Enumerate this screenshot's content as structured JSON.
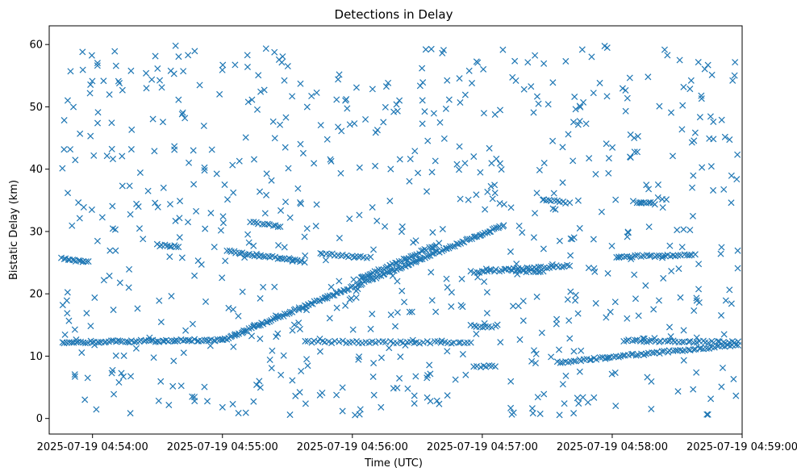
{
  "chart_data": {
    "type": "scatter",
    "title": "Detections in Delay",
    "xlabel": "Time (UTC)",
    "ylabel": "Bistatic Delay (km)",
    "marker": "x",
    "color": "#1f77b4",
    "grid": false,
    "x_unit": "seconds since 2025-07-19 04:53:40",
    "xlim": [
      0,
      320
    ],
    "ylim": [
      -2.5,
      63
    ],
    "x_ticks": [
      {
        "value": 20,
        "label": "2025-07-19 04:54:00"
      },
      {
        "value": 80,
        "label": "2025-07-19 04:55:00"
      },
      {
        "value": 140,
        "label": "2025-07-19 04:56:00"
      },
      {
        "value": 200,
        "label": "2025-07-19 04:57:00"
      },
      {
        "value": 260,
        "label": "2025-07-19 04:58:00"
      },
      {
        "value": 320,
        "label": "2025-07-19 04:59:00"
      }
    ],
    "y_ticks": [
      {
        "value": 0,
        "label": "0"
      },
      {
        "value": 10,
        "label": "10"
      },
      {
        "value": 20,
        "label": "20"
      },
      {
        "value": 30,
        "label": "30"
      },
      {
        "value": 40,
        "label": "40"
      },
      {
        "value": 50,
        "label": "50"
      },
      {
        "value": 60,
        "label": "60"
      }
    ],
    "tracks": [
      {
        "name": "track-12km-early",
        "x_start": 6,
        "x_end": 80,
        "y_start": 12.2,
        "y_end": 12.6,
        "count": 70
      },
      {
        "name": "track-rising-12-to-31",
        "x_start": 80,
        "x_end": 210,
        "y_start": 12.6,
        "y_end": 31.0,
        "count": 150
      },
      {
        "name": "track-25-early",
        "x_start": 6,
        "x_end": 18,
        "y_start": 25.6,
        "y_end": 25.2,
        "count": 14
      },
      {
        "name": "track-27-to-25",
        "x_start": 82,
        "x_end": 118,
        "y_start": 26.8,
        "y_end": 25.2,
        "count": 35
      },
      {
        "name": "track-31-short",
        "x_start": 93,
        "x_end": 107,
        "y_start": 31.4,
        "y_end": 30.8,
        "count": 12
      },
      {
        "name": "track-28-short",
        "x_start": 50,
        "x_end": 60,
        "y_start": 27.8,
        "y_end": 27.6,
        "count": 10
      },
      {
        "name": "track-rising-22-to-28",
        "x_start": 144,
        "x_end": 180,
        "y_start": 22.5,
        "y_end": 28.0,
        "count": 40
      },
      {
        "name": "track-26-mid",
        "x_start": 125,
        "x_end": 148,
        "y_start": 26.5,
        "y_end": 25.8,
        "count": 18
      },
      {
        "name": "track-12km-mid",
        "x_start": 118,
        "x_end": 195,
        "y_start": 12.3,
        "y_end": 12.2,
        "count": 50
      },
      {
        "name": "track-24-late",
        "x_start": 195,
        "x_end": 240,
        "y_start": 23.5,
        "y_end": 24.5,
        "count": 40
      },
      {
        "name": "track-rising-9-to-12",
        "x_start": 235,
        "x_end": 318,
        "y_start": 9.0,
        "y_end": 11.8,
        "count": 70
      },
      {
        "name": "track-12km-late",
        "x_start": 265,
        "x_end": 318,
        "y_start": 12.5,
        "y_end": 12.2,
        "count": 40
      },
      {
        "name": "track-26-late",
        "x_start": 262,
        "x_end": 298,
        "y_start": 26.0,
        "y_end": 26.2,
        "count": 30
      },
      {
        "name": "track-35-short",
        "x_start": 228,
        "x_end": 240,
        "y_start": 35.0,
        "y_end": 34.6,
        "count": 10
      },
      {
        "name": "track-35-late",
        "x_start": 270,
        "x_end": 280,
        "y_start": 34.8,
        "y_end": 34.5,
        "count": 10
      },
      {
        "name": "track-14-short",
        "x_start": 196,
        "x_end": 206,
        "y_start": 14.8,
        "y_end": 14.7,
        "count": 8
      },
      {
        "name": "track-8-short",
        "x_start": 196,
        "x_end": 206,
        "y_start": 8.4,
        "y_end": 8.3,
        "count": 8
      },
      {
        "name": "track-23-late",
        "x_start": 214,
        "x_end": 228,
        "y_start": 23.7,
        "y_end": 23.6,
        "count": 10
      }
    ],
    "clutter": {
      "x_range": [
        6,
        318
      ],
      "y_range": [
        0.5,
        60
      ],
      "count": 720,
      "seed": 1337
    }
  }
}
